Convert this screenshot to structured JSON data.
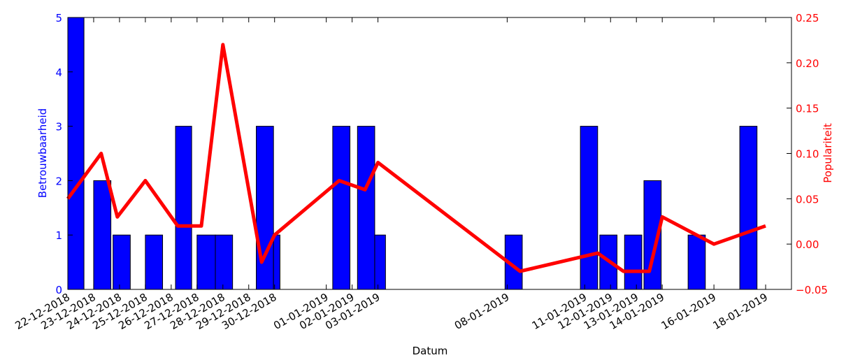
{
  "chart_data": {
    "type": "bar+line",
    "title": "",
    "xlabel": "Datum",
    "ylabel_left": "Betrouwbaarheid",
    "ylabel_right": "Populariteit",
    "colors": {
      "bars": "#0000ff",
      "line": "#ff0000",
      "left_axis": "#0000ff",
      "right_axis": "#ff0000"
    },
    "xlim": [
      "2018-12-22",
      "2019-01-19"
    ],
    "ylim_left": [
      0,
      5
    ],
    "ylim_right": [
      -0.05,
      0.25
    ],
    "yticks_left": [
      "0",
      "1",
      "2",
      "3",
      "4",
      "5"
    ],
    "yticks_right": [
      "−0.05",
      "0.00",
      "0.05",
      "0.10",
      "0.15",
      "0.20",
      "0.25"
    ],
    "x_tick_labels": [
      {
        "date": "2018-12-22",
        "label": "22-12-2018"
      },
      {
        "date": "2018-12-23",
        "label": "23-12-2018"
      },
      {
        "date": "2018-12-24",
        "label": "24-12-2018"
      },
      {
        "date": "2018-12-25",
        "label": "25-12-2018"
      },
      {
        "date": "2018-12-26",
        "label": "26-12-2018"
      },
      {
        "date": "2018-12-27",
        "label": "27-12-2018"
      },
      {
        "date": "2018-12-28",
        "label": "28-12-2018"
      },
      {
        "date": "2018-12-29",
        "label": "29-12-2018"
      },
      {
        "date": "2018-12-30",
        "label": "30-12-2018"
      },
      {
        "date": "2019-01-01",
        "label": "01-01-2019"
      },
      {
        "date": "2019-01-02",
        "label": "02-01-2019"
      },
      {
        "date": "2019-01-03",
        "label": "03-01-2019"
      },
      {
        "date": "2019-01-08",
        "label": "08-01-2019"
      },
      {
        "date": "2019-01-11",
        "label": "11-01-2019"
      },
      {
        "date": "2019-01-12",
        "label": "12-01-2019"
      },
      {
        "date": "2019-01-13",
        "label": "13-01-2019"
      },
      {
        "date": "2019-01-14",
        "label": "14-01-2019"
      },
      {
        "date": "2019-01-16",
        "label": "16-01-2019"
      },
      {
        "date": "2019-01-18",
        "label": "18-01-2019"
      }
    ],
    "bars": [
      {
        "start": "2018-12-22 00:00",
        "end": "2018-12-22 15:00",
        "value": 5
      },
      {
        "start": "2018-12-23 00:00",
        "end": "2018-12-23 16:00",
        "value": 2
      },
      {
        "start": "2018-12-23 18:00",
        "end": "2018-12-24 10:00",
        "value": 1
      },
      {
        "start": "2018-12-25 00:00",
        "end": "2018-12-25 16:00",
        "value": 1
      },
      {
        "start": "2018-12-26 04:00",
        "end": "2018-12-26 19:00",
        "value": 3
      },
      {
        "start": "2018-12-27 00:00",
        "end": "2018-12-27 17:00",
        "value": 1
      },
      {
        "start": "2018-12-27 17:00",
        "end": "2018-12-28 09:00",
        "value": 1
      },
      {
        "start": "2018-12-29 07:00",
        "end": "2018-12-29 23:00",
        "value": 3
      },
      {
        "start": "2018-12-29 23:00",
        "end": "2018-12-30 05:00",
        "value": 1
      },
      {
        "start": "2019-01-01 06:00",
        "end": "2019-01-01 22:00",
        "value": 3
      },
      {
        "start": "2019-01-02 05:00",
        "end": "2019-01-02 21:00",
        "value": 3
      },
      {
        "start": "2019-01-02 21:00",
        "end": "2019-01-03 07:00",
        "value": 1
      },
      {
        "start": "2019-01-07 22:00",
        "end": "2019-01-08 14:00",
        "value": 1
      },
      {
        "start": "2019-01-10 20:00",
        "end": "2019-01-11 12:00",
        "value": 3
      },
      {
        "start": "2019-01-11 14:00",
        "end": "2019-01-12 06:00",
        "value": 1
      },
      {
        "start": "2019-01-12 13:00",
        "end": "2019-01-13 05:00",
        "value": 1
      },
      {
        "start": "2019-01-13 07:00",
        "end": "2019-01-13 23:00",
        "value": 2
      },
      {
        "start": "2019-01-15 00:00",
        "end": "2019-01-15 16:00",
        "value": 1
      },
      {
        "start": "2019-01-17 00:00",
        "end": "2019-01-17 16:00",
        "value": 3
      }
    ],
    "line": [
      {
        "x": "2018-12-22 00:00",
        "y": 0.05
      },
      {
        "x": "2018-12-23 07:00",
        "y": 0.1
      },
      {
        "x": "2018-12-23 22:00",
        "y": 0.03
      },
      {
        "x": "2018-12-25 00:00",
        "y": 0.07
      },
      {
        "x": "2018-12-26 06:00",
        "y": 0.02
      },
      {
        "x": "2018-12-27 04:00",
        "y": 0.02
      },
      {
        "x": "2018-12-28 00:00",
        "y": 0.22
      },
      {
        "x": "2018-12-29 12:00",
        "y": -0.02
      },
      {
        "x": "2018-12-30 00:00",
        "y": 0.01
      },
      {
        "x": "2019-01-01 12:00",
        "y": 0.07
      },
      {
        "x": "2019-01-02 12:00",
        "y": 0.06
      },
      {
        "x": "2019-01-03 00:00",
        "y": 0.09
      },
      {
        "x": "2019-01-08 12:00",
        "y": -0.03
      },
      {
        "x": "2019-01-11 12:00",
        "y": -0.01
      },
      {
        "x": "2019-01-12 12:00",
        "y": -0.03
      },
      {
        "x": "2019-01-13 12:00",
        "y": -0.03
      },
      {
        "x": "2019-01-14 00:00",
        "y": 0.03
      },
      {
        "x": "2019-01-16 00:00",
        "y": 0.0
      },
      {
        "x": "2019-01-18 00:00",
        "y": 0.02
      }
    ]
  }
}
